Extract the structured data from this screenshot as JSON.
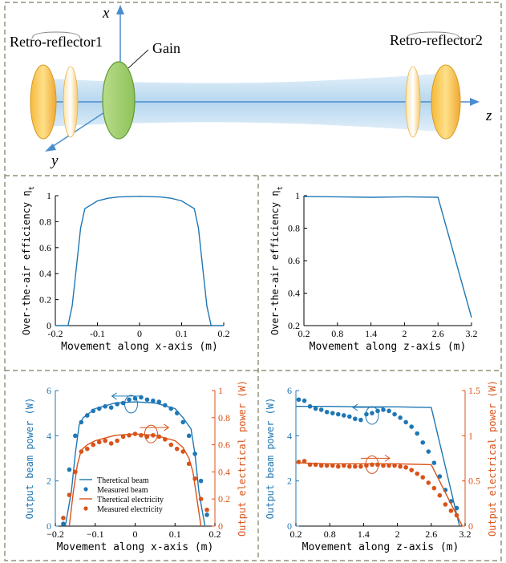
{
  "top_diagram": {
    "labels": {
      "retro1": "Retro-reflector1",
      "retro2": "Retro-reflector2",
      "gain": "Gain",
      "axis_x": "x",
      "axis_y": "y",
      "axis_z": "z"
    }
  },
  "colors": {
    "blue": "#1f77b4",
    "orange": "#d95319",
    "frame": "#7a7a5a",
    "gold": "#f2c14e",
    "green": "#9ccc65",
    "beam": "#b7d7ee"
  },
  "chart_data": [
    {
      "id": "eta-x",
      "type": "line",
      "xlabel": "Movement along x-axis (m)",
      "ylabel": "Over-the-air efficiency η",
      "ylabel_sub": "t",
      "xlim": [
        -0.2,
        0.2
      ],
      "ylim": [
        0,
        1
      ],
      "xticks": [
        -0.2,
        -0.1,
        0,
        0.1,
        0.2
      ],
      "xtick_labels": [
        "-0.2",
        "-0.1",
        "0",
        "0.1",
        "0.2"
      ],
      "yticks": [
        0,
        0.2,
        0.4,
        0.6,
        0.8,
        1
      ],
      "ytick_labels": [
        "0",
        "0.2",
        "0.4",
        "0.6",
        "0.8",
        "1"
      ],
      "series": [
        {
          "color": "#1f77b4",
          "x": [
            -0.2,
            -0.17,
            -0.16,
            -0.15,
            -0.14,
            -0.13,
            -0.1,
            -0.075,
            -0.05,
            0,
            0.05,
            0.075,
            0.1,
            0.13,
            0.14,
            0.15,
            0.16,
            0.17,
            0.2
          ],
          "y": [
            0,
            0,
            0.15,
            0.45,
            0.75,
            0.9,
            0.96,
            0.98,
            0.99,
            0.995,
            0.99,
            0.98,
            0.96,
            0.9,
            0.75,
            0.45,
            0.15,
            0,
            0
          ]
        }
      ]
    },
    {
      "id": "eta-z",
      "type": "line",
      "xlabel": "Movement along z-axis (m)",
      "ylabel": "Over-the-air efficiency η",
      "ylabel_sub": "t",
      "xlim": [
        0.2,
        3.2
      ],
      "ylim": [
        0.2,
        1
      ],
      "xticks": [
        0.2,
        0.8,
        1.4,
        2,
        2.6,
        3.2
      ],
      "xtick_labels": [
        "0.2",
        "0.8",
        "1.4",
        "2",
        "2.6",
        "3.2"
      ],
      "yticks": [
        0.2,
        0.4,
        0.6,
        0.8,
        1
      ],
      "ytick_labels": [
        "0.2",
        "0.4",
        "0.6",
        "0.8",
        "1"
      ],
      "series": [
        {
          "color": "#1f77b4",
          "x": [
            0.2,
            0.8,
            1.4,
            2,
            2.6,
            3.2
          ],
          "y": [
            0.995,
            0.993,
            0.99,
            0.993,
            0.99,
            0.25
          ]
        }
      ]
    },
    {
      "id": "power-x",
      "type": "line+scatter",
      "xlabel": "Movement along x-axis (m)",
      "ylabel_left": "Output beam power (W)",
      "ylabel_right": "Output electrical power (W)",
      "xlim": [
        -0.2,
        0.2
      ],
      "ylim_left": [
        0,
        6
      ],
      "ylim_right": [
        0,
        1
      ],
      "xticks": [
        -0.2,
        -0.1,
        0,
        0.1,
        0.2
      ],
      "xtick_labels": [
        "−0.2",
        "−0.1",
        "0",
        "0.1",
        "0.2"
      ],
      "yticks_left": [
        0,
        2,
        4,
        6
      ],
      "ytick_labels_left": [
        "0",
        "2",
        "4",
        "6"
      ],
      "yticks_right": [
        0,
        0.2,
        0.4,
        0.6,
        0.8,
        1
      ],
      "ytick_labels_right": [
        "0",
        "0.2",
        "0.4",
        "0.6",
        "0.8",
        "1"
      ],
      "legend": {
        "placement": "bottom-center",
        "entries": [
          "Theretical beam",
          "Measured beam",
          "Theretical electricity",
          "Measured electricity"
        ]
      },
      "series": [
        {
          "name": "Theretical beam",
          "kind": "line",
          "axis": "left",
          "color": "#1f77b4",
          "x": [
            -0.175,
            -0.16,
            -0.15,
            -0.14,
            -0.13,
            -0.1,
            -0.05,
            0,
            0.05,
            0.1,
            0.12,
            0.14,
            0.15,
            0.16,
            0.175
          ],
          "y": [
            0,
            1.5,
            3.2,
            4.5,
            4.8,
            5.2,
            5.45,
            5.5,
            5.45,
            5.2,
            4.8,
            4.3,
            3.2,
            1.5,
            0
          ]
        },
        {
          "name": "Measured beam",
          "kind": "scatter",
          "axis": "left",
          "color": "#1f77b4",
          "x": [
            -0.18,
            -0.165,
            -0.15,
            -0.135,
            -0.12,
            -0.105,
            -0.09,
            -0.075,
            -0.06,
            -0.045,
            -0.03,
            -0.015,
            0,
            0.015,
            0.03,
            0.045,
            0.06,
            0.075,
            0.09,
            0.105,
            0.12,
            0.135,
            0.15,
            0.165,
            0.18
          ],
          "y": [
            0.1,
            2.5,
            4.0,
            4.6,
            4.9,
            5.1,
            5.2,
            5.3,
            5.25,
            5.4,
            5.45,
            5.6,
            5.65,
            5.7,
            5.6,
            5.55,
            5.5,
            5.35,
            5.2,
            5.0,
            4.6,
            4.0,
            3.2,
            2.0,
            0.5
          ]
        },
        {
          "name": "Theretical electricity",
          "kind": "line",
          "axis": "right",
          "color": "#d95319",
          "x": [
            -0.165,
            -0.155,
            -0.145,
            -0.135,
            -0.12,
            -0.1,
            -0.05,
            0,
            0.05,
            0.1,
            0.12,
            0.135,
            0.145,
            0.155,
            0.165
          ],
          "y": [
            0,
            0.25,
            0.45,
            0.56,
            0.6,
            0.63,
            0.67,
            0.68,
            0.67,
            0.63,
            0.58,
            0.5,
            0.4,
            0.2,
            0
          ]
        },
        {
          "name": "Measured electricity",
          "kind": "scatter",
          "axis": "right",
          "color": "#d95319",
          "x": [
            -0.18,
            -0.165,
            -0.15,
            -0.135,
            -0.12,
            -0.105,
            -0.09,
            -0.075,
            -0.06,
            -0.045,
            -0.03,
            -0.015,
            0,
            0.015,
            0.03,
            0.045,
            0.06,
            0.075,
            0.09,
            0.105,
            0.12,
            0.135,
            0.15,
            0.165,
            0.18
          ],
          "y": [
            0.06,
            0.23,
            0.4,
            0.55,
            0.57,
            0.6,
            0.62,
            0.63,
            0.61,
            0.63,
            0.66,
            0.67,
            0.68,
            0.67,
            0.66,
            0.67,
            0.66,
            0.64,
            0.6,
            0.57,
            0.55,
            0.46,
            0.35,
            0.2,
            0.12
          ]
        }
      ]
    },
    {
      "id": "power-z",
      "type": "line+scatter",
      "xlabel": "Movement along z-axis (m)",
      "ylabel_left": "Output beam power (W)",
      "ylabel_right": "Output electrical power (W)",
      "xlim": [
        0.2,
        3.2
      ],
      "ylim_left": [
        0,
        6
      ],
      "ylim_right": [
        0,
        1.5
      ],
      "xticks": [
        0.2,
        0.8,
        1.4,
        2,
        2.6,
        3.2
      ],
      "xtick_labels": [
        "0.2",
        "0.8",
        "1.4",
        "2",
        "2.6",
        "3.2"
      ],
      "yticks_left": [
        0,
        2,
        4,
        6
      ],
      "ytick_labels_left": [
        "0",
        "2",
        "4",
        "6"
      ],
      "yticks_right": [
        0,
        0.5,
        1,
        1.5
      ],
      "ytick_labels_right": [
        "0",
        "0.5",
        "1",
        "1.5"
      ],
      "series": [
        {
          "kind": "line",
          "axis": "left",
          "color": "#1f77b4",
          "x": [
            0.2,
            0.8,
            1.4,
            2,
            2.6,
            3.1
          ],
          "y": [
            5.3,
            5.3,
            5.28,
            5.28,
            5.25,
            0
          ]
        },
        {
          "kind": "scatter",
          "axis": "left",
          "color": "#1f77b4",
          "x": [
            0.25,
            0.35,
            0.45,
            0.55,
            0.65,
            0.75,
            0.85,
            0.95,
            1.05,
            1.15,
            1.25,
            1.35,
            1.45,
            1.55,
            1.65,
            1.75,
            1.85,
            1.95,
            2.05,
            2.15,
            2.25,
            2.35,
            2.45,
            2.55,
            2.65,
            2.75,
            2.85,
            2.95,
            3.05
          ],
          "y": [
            5.6,
            5.55,
            5.3,
            5.2,
            5.15,
            5.05,
            5.0,
            4.95,
            4.9,
            4.85,
            4.75,
            4.7,
            4.95,
            5.0,
            5.1,
            5.15,
            5.1,
            4.95,
            4.8,
            4.6,
            4.4,
            4.1,
            3.7,
            3.3,
            2.8,
            2.2,
            1.6,
            1.1,
            0.8
          ]
        },
        {
          "kind": "line",
          "axis": "right",
          "color": "#d95319",
          "x": [
            0.2,
            0.8,
            1.4,
            2,
            2.6,
            3.15
          ],
          "y": [
            0.7,
            0.69,
            0.69,
            0.69,
            0.68,
            0
          ]
        },
        {
          "kind": "scatter",
          "axis": "right",
          "color": "#d95319",
          "x": [
            0.25,
            0.35,
            0.45,
            0.55,
            0.65,
            0.75,
            0.85,
            0.95,
            1.05,
            1.15,
            1.25,
            1.35,
            1.45,
            1.55,
            1.65,
            1.75,
            1.85,
            1.95,
            2.05,
            2.15,
            2.25,
            2.35,
            2.45,
            2.55,
            2.65,
            2.75,
            2.85,
            2.95,
            3.05
          ],
          "y": [
            0.71,
            0.72,
            0.68,
            0.68,
            0.67,
            0.67,
            0.67,
            0.66,
            0.67,
            0.66,
            0.66,
            0.66,
            0.67,
            0.68,
            0.68,
            0.67,
            0.67,
            0.67,
            0.66,
            0.65,
            0.62,
            0.58,
            0.54,
            0.48,
            0.42,
            0.34,
            0.24,
            0.17,
            0.12
          ]
        }
      ]
    }
  ]
}
